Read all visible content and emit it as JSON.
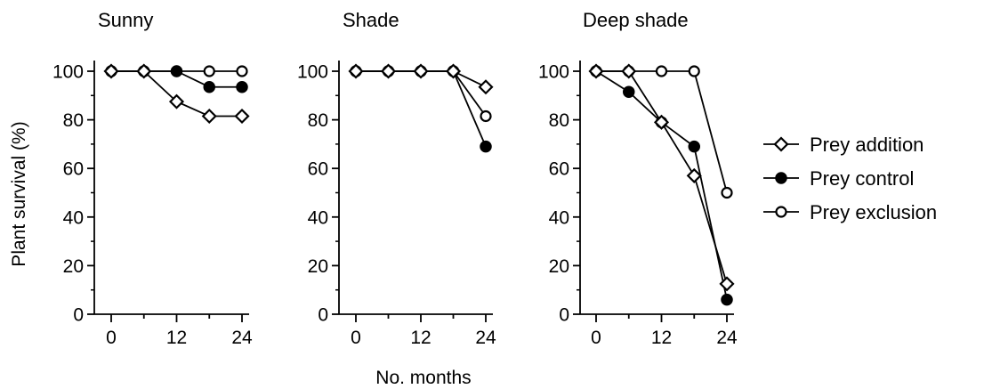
{
  "chart_data": {
    "type": "line",
    "ylabel": "Plant survival (%)",
    "xlabel": "No. months",
    "ylim": [
      0,
      100
    ],
    "yticks": [
      0,
      20,
      40,
      60,
      80,
      100
    ],
    "xlim": [
      0,
      24
    ],
    "xticks": [
      0,
      12,
      24
    ],
    "xtick_labels": [
      "0",
      "12",
      "24"
    ],
    "grid": false,
    "legend_position": "right",
    "legend": [
      {
        "name": "Prey addition",
        "marker": "diamond-open"
      },
      {
        "name": "Prey control",
        "marker": "circle-filled"
      },
      {
        "name": "Prey exclusion",
        "marker": "circle-open"
      }
    ],
    "panels": [
      {
        "title": "Sunny",
        "x": [
          0,
          6,
          12,
          18,
          24
        ],
        "series": [
          {
            "name": "Prey exclusion",
            "values": [
              100,
              100,
              100,
              100,
              100
            ]
          },
          {
            "name": "Prey control",
            "values": [
              100,
              100,
              100,
              93.5,
              93.5
            ]
          },
          {
            "name": "Prey addition",
            "values": [
              100,
              100,
              87.5,
              81.5,
              81.5
            ]
          }
        ]
      },
      {
        "title": "Shade",
        "x": [
          0,
          6,
          12,
          18,
          24
        ],
        "series": [
          {
            "name": "Prey addition",
            "values": [
              100,
              100,
              100,
              100,
              93.5
            ]
          },
          {
            "name": "Prey exclusion",
            "values": [
              100,
              100,
              100,
              100,
              81.5
            ]
          },
          {
            "name": "Prey control",
            "values": [
              100,
              100,
              100,
              100,
              69
            ]
          }
        ]
      },
      {
        "title": "Deep shade",
        "x": [
          0,
          6,
          12,
          18,
          24
        ],
        "series": [
          {
            "name": "Prey exclusion",
            "values": [
              100,
              100,
              100,
              100,
              50
            ]
          },
          {
            "name": "Prey addition",
            "values": [
              100,
              100,
              79,
              57,
              12.5
            ]
          },
          {
            "name": "Prey control",
            "values": [
              100,
              91.5,
              79,
              69,
              6
            ]
          }
        ]
      }
    ]
  }
}
